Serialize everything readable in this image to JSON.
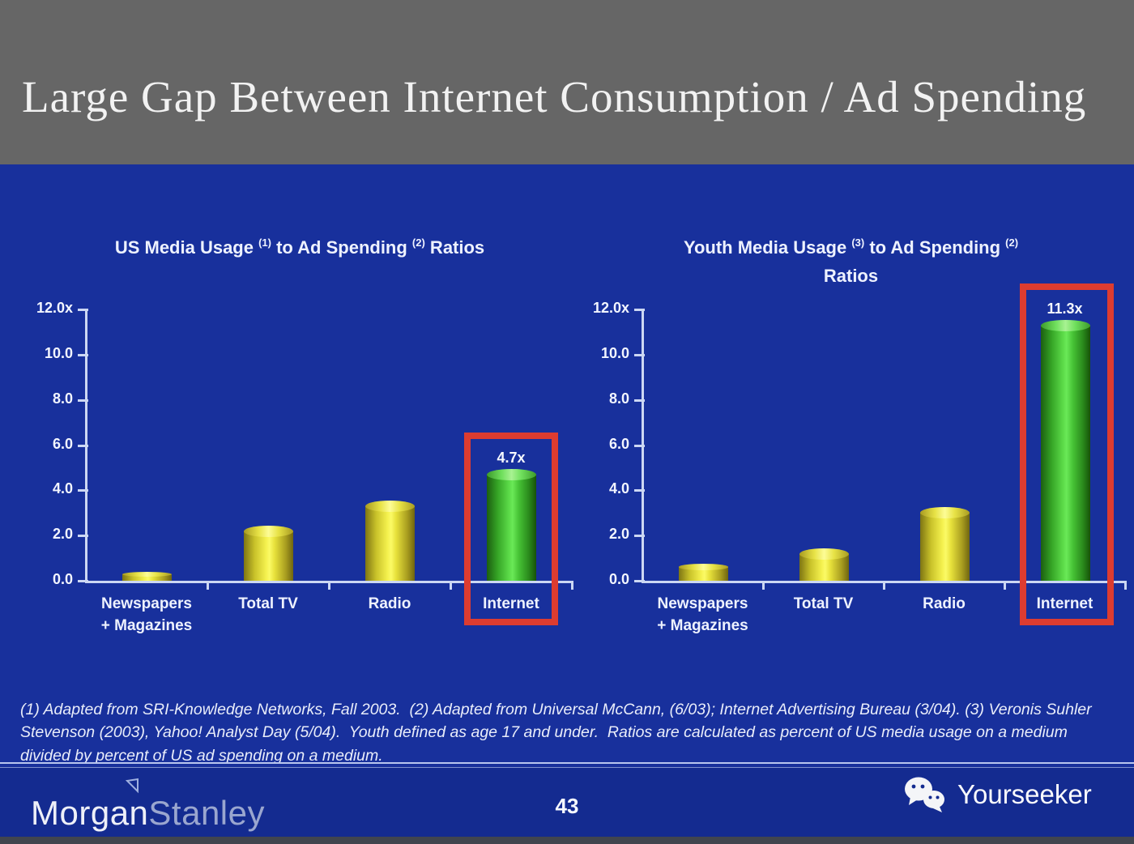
{
  "slide": {
    "title": "Large Gap Between Internet Consumption / Ad Spending",
    "page_number": "43",
    "footnote": "(1) Adapted from SRI-Knowledge Networks, Fall 2003.  (2) Adapted from Universal McCann, (6/03); Internet Advertising Bureau (3/04). (3) Veronis Suhler Stevenson (2003), Yahoo! Analyst Day (5/04).  Youth defined as age 17 and under.  Ratios are calculated as percent of US media usage on a medium divided by percent of US ad spending on a medium."
  },
  "footer": {
    "brand_part1": "Morgan",
    "brand_part2": "Stanley",
    "watermark_label": "Yourseeker"
  },
  "colors": {
    "header_bg": "#666666",
    "body_bg": "#18309c",
    "footer_bg": "#142b90",
    "axis": "#ccd7f3",
    "bar_yellow_center": "#fbfa66",
    "bar_yellow_edge": "#7e7513",
    "bar_green_center": "#6ae957",
    "bar_green_edge": "#1c5e10",
    "highlight_red": "#dd3c30",
    "text_white": "#f2f5ff"
  },
  "chart_data": [
    {
      "type": "bar",
      "title": "US Media Usage (1) to Ad Spending (2) Ratios",
      "title_segments": [
        {
          "t": "US Media Usage "
        },
        {
          "t": "(1)",
          "sup": true
        },
        {
          "t": " to Ad Spending "
        },
        {
          "t": "(2)",
          "sup": true
        },
        {
          "t": " Ratios"
        }
      ],
      "categories": [
        "Newspapers\n+ Magazines",
        "Total TV",
        "Radio",
        "Internet"
      ],
      "values": [
        0.3,
        2.2,
        3.3,
        4.7
      ],
      "highlight_index": 3,
      "highlight_label": "4.7x",
      "ylim": [
        0,
        12
      ],
      "ytick_values": [
        12,
        10,
        8,
        6,
        4,
        2,
        0
      ],
      "ytick_labels": [
        "12.0x",
        "10.0",
        "8.0",
        "6.0",
        "4.0",
        "2.0",
        "0.0"
      ],
      "xlabel": "",
      "ylabel": "",
      "grid": false,
      "legend": false
    },
    {
      "type": "bar",
      "title": "Youth Media Usage (3) to Ad Spending (2) Ratios",
      "title_segments": [
        {
          "t": "Youth Media Usage "
        },
        {
          "t": "(3)",
          "sup": true
        },
        {
          "t": " to Ad Spending "
        },
        {
          "t": "(2)",
          "sup": true
        },
        {
          "br": true
        },
        {
          "t": "Ratios"
        }
      ],
      "categories": [
        "Newspapers\n+ Magazines",
        "Total TV",
        "Radio",
        "Internet"
      ],
      "values": [
        0.6,
        1.2,
        3.0,
        11.3
      ],
      "highlight_index": 3,
      "highlight_label": "11.3x",
      "ylim": [
        0,
        12
      ],
      "ytick_values": [
        12,
        10,
        8,
        6,
        4,
        2,
        0
      ],
      "ytick_labels": [
        "12.0x",
        "10.0",
        "8.0",
        "6.0",
        "4.0",
        "2.0",
        "0.0"
      ],
      "xlabel": "",
      "ylabel": "",
      "grid": false,
      "legend": false
    }
  ]
}
